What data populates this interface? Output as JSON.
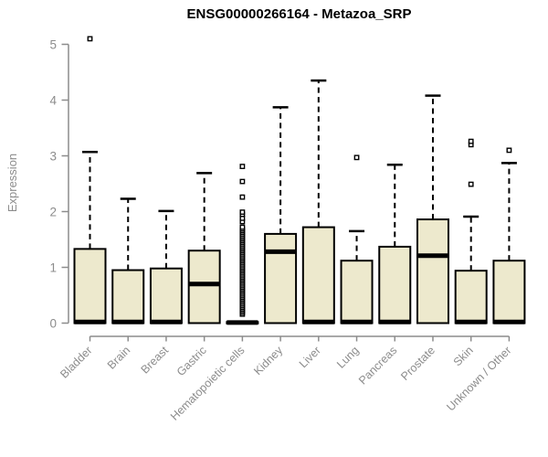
{
  "chart_data": {
    "type": "boxplot",
    "title": "ENSG00000266164 - Metazoa_SRP",
    "xlabel": "",
    "ylabel": "Expression",
    "ylim": [
      0,
      5
    ],
    "yticks": [
      0,
      1,
      2,
      3,
      4,
      5
    ],
    "grid": false,
    "legend": false,
    "categories": [
      "Bladder",
      "Brain",
      "Breast",
      "Gastric",
      "Hematopoietic cells",
      "Kidney",
      "Liver",
      "Lung",
      "Pancreas",
      "Prostate",
      "Skin",
      "Unknown / Other"
    ],
    "series": [
      {
        "name": "Bladder",
        "q1": 0,
        "median": 0.02,
        "q3": 1.33,
        "whisker_low": 0,
        "whisker_high": 3.07,
        "outliers": [
          5.1
        ]
      },
      {
        "name": "Brain",
        "q1": 0,
        "median": 0.02,
        "q3": 0.95,
        "whisker_low": 0,
        "whisker_high": 2.23,
        "outliers": []
      },
      {
        "name": "Breast",
        "q1": 0,
        "median": 0.02,
        "q3": 0.98,
        "whisker_low": 0,
        "whisker_high": 2.01,
        "outliers": []
      },
      {
        "name": "Gastric",
        "q1": 0,
        "median": 0.7,
        "q3": 1.3,
        "whisker_low": 0,
        "whisker_high": 2.69,
        "outliers": []
      },
      {
        "name": "Hematopoietic cells",
        "q1": 0,
        "median": 0.01,
        "q3": 0.02,
        "whisker_low": 0,
        "whisker_high": 0.02,
        "outliers": [
          0.16,
          0.19,
          0.22,
          0.25,
          0.28,
          0.31,
          0.34,
          0.37,
          0.4,
          0.43,
          0.46,
          0.49,
          0.52,
          0.55,
          0.58,
          0.61,
          0.64,
          0.67,
          0.7,
          0.73,
          0.76,
          0.79,
          0.82,
          0.85,
          0.88,
          0.91,
          0.94,
          0.97,
          1.0,
          1.03,
          1.06,
          1.09,
          1.12,
          1.15,
          1.18,
          1.21,
          1.24,
          1.27,
          1.3,
          1.33,
          1.36,
          1.39,
          1.42,
          1.45,
          1.48,
          1.51,
          1.54,
          1.57,
          1.6,
          1.63,
          1.66,
          1.69,
          1.72,
          1.82,
          1.88,
          1.95,
          1.99,
          2.26,
          2.54,
          2.81
        ]
      },
      {
        "name": "Kidney",
        "q1": 0,
        "median": 1.28,
        "q3": 1.6,
        "whisker_low": 0,
        "whisker_high": 3.87,
        "outliers": []
      },
      {
        "name": "Liver",
        "q1": 0,
        "median": 0.02,
        "q3": 1.72,
        "whisker_low": 0,
        "whisker_high": 4.35,
        "outliers": []
      },
      {
        "name": "Lung",
        "q1": 0,
        "median": 0.02,
        "q3": 1.12,
        "whisker_low": 0,
        "whisker_high": 1.65,
        "outliers": [
          2.97
        ]
      },
      {
        "name": "Pancreas",
        "q1": 0,
        "median": 0.02,
        "q3": 1.37,
        "whisker_low": 0,
        "whisker_high": 2.84,
        "outliers": []
      },
      {
        "name": "Prostate",
        "q1": 0,
        "median": 1.21,
        "q3": 1.86,
        "whisker_low": 0,
        "whisker_high": 4.08,
        "outliers": []
      },
      {
        "name": "Skin",
        "q1": 0,
        "median": 0.02,
        "q3": 0.94,
        "whisker_low": 0,
        "whisker_high": 1.91,
        "outliers": [
          2.49,
          3.2,
          3.26
        ]
      },
      {
        "name": "Unknown / Other",
        "q1": 0,
        "median": 0.02,
        "q3": 1.12,
        "whisker_low": 0,
        "whisker_high": 2.87,
        "outliers": [
          3.1
        ]
      }
    ],
    "colors": {
      "box_fill": "#EDE9CD",
      "box_border": "#000000",
      "median": "#000000",
      "whisker": "#000000",
      "outlier": "#000000",
      "axis": "#8C8C8C",
      "title": "#000000",
      "background": "#FFFFFF"
    }
  }
}
